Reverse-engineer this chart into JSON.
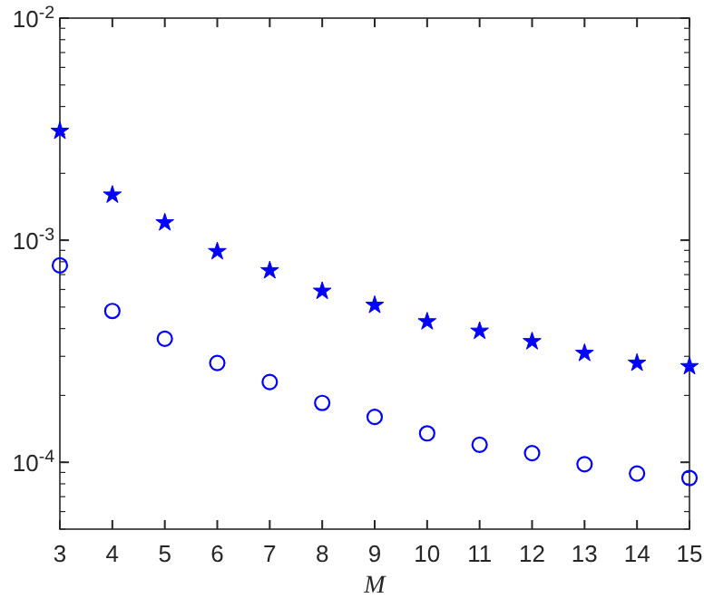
{
  "chart_data": {
    "type": "scatter",
    "xlabel": "M",
    "log": "y",
    "grid": false,
    "x": [
      3,
      4,
      5,
      6,
      7,
      8,
      9,
      10,
      11,
      12,
      13,
      14,
      15
    ],
    "xlim": [
      3,
      15
    ],
    "xticks": [
      3,
      4,
      5,
      6,
      7,
      8,
      9,
      10,
      11,
      12,
      13,
      14,
      15
    ],
    "ylim": [
      5e-05,
      0.01
    ],
    "yticks": [
      {
        "value": 0.0001,
        "label": "10$^{-4}$"
      },
      {
        "value": 0.001,
        "label": "10$^{-3}$"
      },
      {
        "value": 0.01,
        "label": "10$^{-2}$"
      }
    ],
    "series": [
      {
        "color": "#0000ff",
        "marker": "star",
        "values": [
          0.0031,
          0.0016,
          0.0012,
          0.00089,
          0.00073,
          0.00059,
          0.00051,
          0.00043,
          0.00039,
          0.00035,
          0.00031,
          0.00028,
          0.00027
        ]
      },
      {
        "color": "#0000ff",
        "marker": "circle",
        "values": [
          0.00077,
          0.00048,
          0.00036,
          0.00028,
          0.00023,
          0.000185,
          0.00016,
          0.000135,
          0.00012,
          0.00011,
          9.8e-05,
          8.9e-05,
          8.5e-05
        ]
      }
    ]
  }
}
